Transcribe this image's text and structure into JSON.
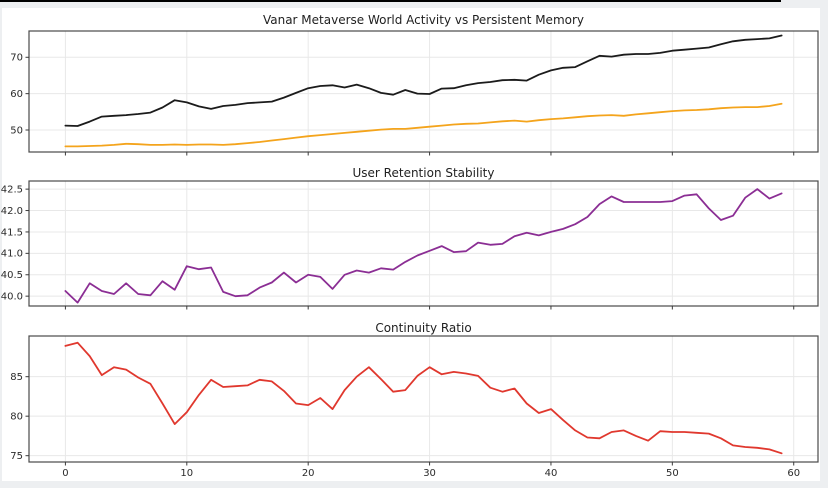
{
  "figure": {
    "background": "#ffffff",
    "page_background": "#edeff1",
    "top_border_color": "#000000",
    "grid_color": "#e8e8e8",
    "spine_color": "#494949",
    "tick_color": "#3a3a3a",
    "text_color": "#2b2b2b"
  },
  "chart_data": [
    {
      "type": "line",
      "title": "Vanar Metaverse World Activity vs Persistent Memory",
      "x_start": 0,
      "x_step": 1,
      "n_points": 60,
      "xlim": [
        -3.0,
        62.0
      ],
      "ylim": [
        43.95,
        77.23
      ],
      "grid": true,
      "legend": null,
      "ytick_values": [
        50,
        60,
        70
      ],
      "ytick_labels": [
        "50",
        "60",
        "70"
      ],
      "xtick_values": [
        0,
        10,
        20,
        30,
        40,
        50,
        60
      ],
      "xtick_labels": [],
      "series": [
        {
          "name": "World Activity",
          "color": "#1b1b1b",
          "values": [
            51.2,
            51.1,
            52.3,
            53.7,
            53.9,
            54.1,
            54.4,
            54.8,
            56.2,
            58.2,
            57.6,
            56.5,
            55.8,
            56.6,
            56.9,
            57.4,
            57.6,
            57.8,
            58.9,
            60.2,
            61.5,
            62.1,
            62.3,
            61.7,
            62.5,
            61.5,
            60.2,
            59.7,
            61.0,
            60.0,
            59.9,
            61.4,
            61.5,
            62.3,
            62.9,
            63.2,
            63.7,
            63.8,
            63.6,
            65.2,
            66.4,
            67.1,
            67.3,
            68.9,
            70.4,
            70.2,
            70.7,
            70.9,
            70.9,
            71.2,
            71.8,
            72.1,
            72.4,
            72.7,
            73.6,
            74.4,
            74.8,
            75.0,
            75.2,
            76.0
          ]
        },
        {
          "name": "Persistent Memory",
          "color": "#f4a41c",
          "values": [
            45.5,
            45.5,
            45.6,
            45.7,
            45.9,
            46.2,
            46.1,
            45.9,
            45.9,
            46.0,
            45.9,
            46.0,
            46.0,
            45.9,
            46.1,
            46.4,
            46.7,
            47.1,
            47.5,
            47.9,
            48.3,
            48.6,
            48.9,
            49.2,
            49.5,
            49.8,
            50.1,
            50.3,
            50.3,
            50.6,
            50.9,
            51.2,
            51.5,
            51.7,
            51.8,
            52.1,
            52.4,
            52.6,
            52.3,
            52.7,
            53.0,
            53.2,
            53.5,
            53.8,
            54.0,
            54.1,
            53.9,
            54.3,
            54.6,
            54.9,
            55.2,
            55.4,
            55.5,
            55.7,
            56.0,
            56.2,
            56.3,
            56.3,
            56.6,
            57.2
          ]
        }
      ]
    },
    {
      "type": "line",
      "title": "User Retention Stability",
      "x_start": 0,
      "x_step": 1,
      "n_points": 60,
      "xlim": [
        -3.0,
        62.0
      ],
      "ylim": [
        39.77,
        42.69
      ],
      "grid": true,
      "legend": null,
      "ytick_values": [
        40.0,
        40.5,
        41.0,
        41.5,
        42.0,
        42.5
      ],
      "ytick_labels": [
        "40.0",
        "40.5",
        "41.0",
        "41.5",
        "42.0",
        "42.5"
      ],
      "xtick_values": [
        0,
        10,
        20,
        30,
        40,
        50,
        60
      ],
      "xtick_labels": [],
      "series": [
        {
          "name": "User Retention",
          "color": "#8b2e94",
          "values": [
            40.12,
            39.85,
            40.3,
            40.12,
            40.05,
            40.3,
            40.05,
            40.02,
            40.35,
            40.15,
            40.7,
            40.63,
            40.67,
            40.1,
            40.0,
            40.02,
            40.2,
            40.32,
            40.55,
            40.32,
            40.5,
            40.45,
            40.17,
            40.5,
            40.6,
            40.55,
            40.65,
            40.62,
            40.8,
            40.95,
            41.06,
            41.17,
            41.03,
            41.05,
            41.25,
            41.2,
            41.22,
            41.4,
            41.48,
            41.42,
            41.5,
            41.57,
            41.68,
            41.85,
            42.15,
            42.33,
            42.2,
            42.2,
            42.2,
            42.2,
            42.22,
            42.35,
            42.38,
            42.05,
            41.78,
            41.88,
            42.3,
            42.5,
            42.28,
            42.4
          ]
        }
      ]
    },
    {
      "type": "line",
      "title": "Continuity Ratio",
      "x_start": 0,
      "x_step": 1,
      "n_points": 60,
      "xlim": [
        -3.0,
        62.0
      ],
      "ylim": [
        74.2,
        90.15
      ],
      "grid": true,
      "legend": null,
      "ytick_values": [
        75,
        80,
        85
      ],
      "ytick_labels": [
        "75",
        "80",
        "85"
      ],
      "xtick_values": [
        0,
        10,
        20,
        30,
        40,
        50,
        60
      ],
      "xtick_labels": [
        "0",
        "10",
        "20",
        "30",
        "40",
        "50",
        "60"
      ],
      "series": [
        {
          "name": "Continuity Ratio",
          "color": "#e0382e",
          "values": [
            88.9,
            89.3,
            87.6,
            85.2,
            86.2,
            85.9,
            84.9,
            84.1,
            81.6,
            79.0,
            80.5,
            82.7,
            84.6,
            83.7,
            83.8,
            83.9,
            84.6,
            84.4,
            83.2,
            81.6,
            81.4,
            82.3,
            80.9,
            83.3,
            85.0,
            86.2,
            84.7,
            83.1,
            83.3,
            85.1,
            86.2,
            85.3,
            85.6,
            85.4,
            85.1,
            83.6,
            83.1,
            83.5,
            81.6,
            80.4,
            80.9,
            79.5,
            78.2,
            77.3,
            77.2,
            78.0,
            78.2,
            77.5,
            76.9,
            78.1,
            78.0,
            78.0,
            77.9,
            77.8,
            77.2,
            76.3,
            76.1,
            76.0,
            75.8,
            75.3
          ]
        }
      ]
    }
  ]
}
